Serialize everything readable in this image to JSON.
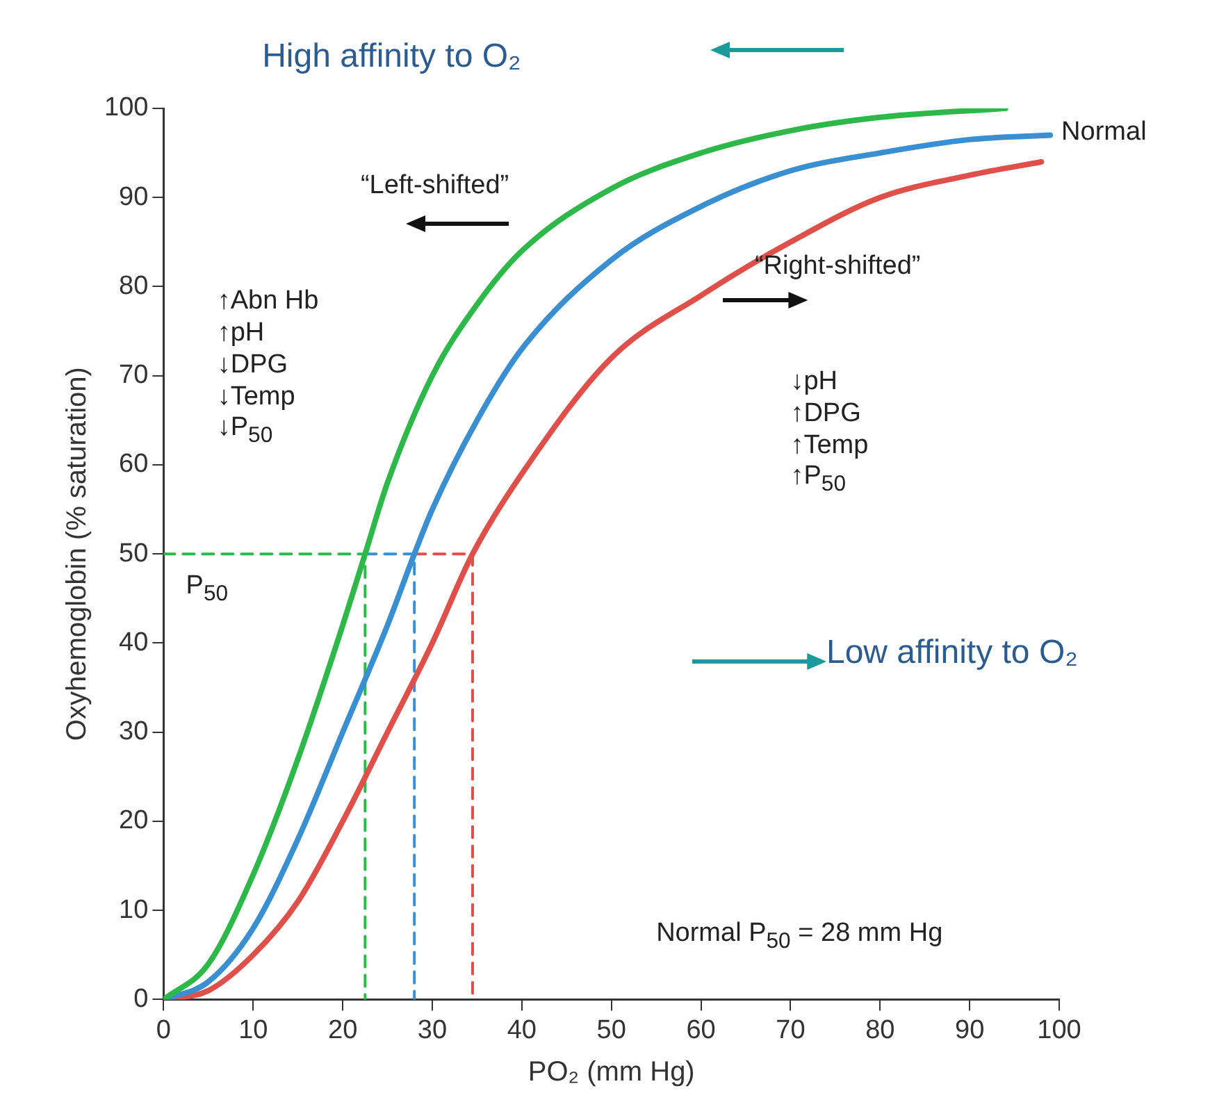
{
  "chart_data": {
    "type": "line",
    "xlabel": "PO₂ (mm Hg)",
    "ylabel": "Oxyhemoglobin (% saturation)",
    "xlim": [
      0,
      100
    ],
    "xticks": [
      0,
      10,
      20,
      30,
      40,
      50,
      60,
      70,
      80,
      90,
      100
    ],
    "ylim": [
      0,
      100
    ],
    "yticks": [
      0,
      10,
      20,
      30,
      40,
      50,
      60,
      70,
      80,
      90,
      100
    ],
    "grid": false,
    "legend": false,
    "series": [
      {
        "color": "#2eb84a",
        "x": [
          0,
          5,
          10,
          15,
          20,
          22.5,
          25,
          30,
          35,
          40,
          50,
          60,
          70,
          80,
          94
        ],
        "values": [
          0,
          4,
          14,
          27,
          42,
          50,
          58,
          70,
          78,
          84,
          91,
          95,
          97.5,
          99,
          100
        ]
      },
      {
        "name": "Normal",
        "color": "#3a8fd0",
        "x": [
          0,
          5,
          10,
          15,
          20,
          25,
          28,
          30,
          35,
          40,
          50,
          60,
          70,
          80,
          90,
          99
        ],
        "values": [
          0,
          2,
          8,
          18,
          30,
          42,
          50,
          55,
          65,
          73,
          83,
          89,
          93,
          95,
          96.5,
          97
        ]
      },
      {
        "color": "#e0504a",
        "x": [
          0,
          5,
          10,
          15,
          20,
          25,
          30,
          34.5,
          40,
          50,
          60,
          70,
          80,
          90,
          98
        ],
        "values": [
          0,
          1,
          5,
          11,
          20,
          30,
          40,
          50,
          59,
          72,
          79,
          85,
          90,
          92.5,
          94
        ]
      },
      {
        "color": "#2eb84a",
        "line_style": "dashed",
        "x": [
          0,
          22.5,
          22.5
        ],
        "values": [
          50,
          50,
          0
        ]
      },
      {
        "color": "#3a8fd0",
        "line_style": "dashed",
        "x": [
          22.5,
          28,
          28
        ],
        "values": [
          50,
          50,
          0
        ]
      },
      {
        "color": "#e0504a",
        "line_style": "dashed",
        "x": [
          28,
          34.5,
          34.5
        ],
        "values": [
          50,
          50,
          0
        ]
      }
    ],
    "annotations": [
      "High affinity to O₂",
      "“Left-shifted”",
      "“Right-shifted”",
      "↑Abn Hb\n↑pH\n↓DPG\n↓Temp\n↓P$_{50}$",
      "P$_{50}$",
      "↓pH\n↑DPG\n↑Temp\n↑P$_{50}$",
      "Low affinity to O₂",
      "Normal P$_{50}$ = 28 mm Hg"
    ]
  }
}
